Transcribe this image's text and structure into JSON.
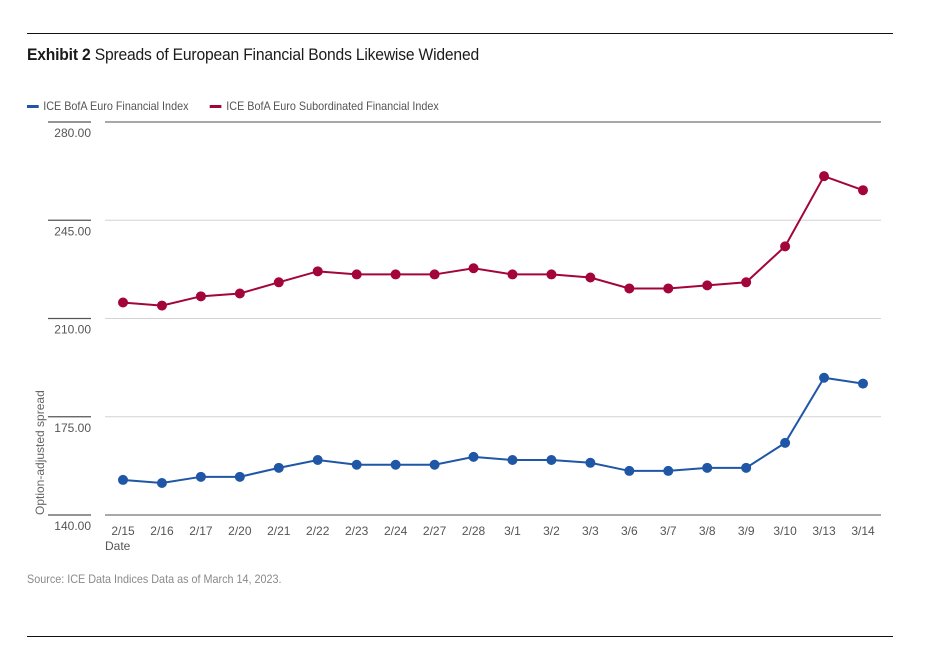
{
  "header": {
    "exhibit": "Exhibit 2",
    "title": "Spreads of European Financial Bonds Likewise Widened"
  },
  "footer": {
    "source": "Source: ICE Data Indices  Data as of March 14, 2023."
  },
  "chart_data": {
    "type": "line",
    "title": "Exhibit 2 Spreads of European Financial Bonds Likewise Widened",
    "xlabel": "Date",
    "ylabel": "Option-adjusted spread",
    "ylim": [
      140,
      280
    ],
    "yticks": [
      140,
      175,
      210,
      245,
      280
    ],
    "ytick_labels": [
      "140.00",
      "175.00",
      "210.00",
      "245.00",
      "280.00"
    ],
    "grid": true,
    "legend_position": "top-left",
    "categories": [
      "2/15",
      "2/16",
      "2/17",
      "2/20",
      "2/21",
      "2/22",
      "2/23",
      "2/24",
      "2/27",
      "2/28",
      "3/1",
      "3/2",
      "3/3",
      "3/6",
      "3/7",
      "3/8",
      "3/9",
      "3/10",
      "3/13",
      "3/14"
    ],
    "series": [
      {
        "name": "ICE BofA Euro Financial Index",
        "color": "#1f56a6",
        "values": [
          152.5,
          151.4,
          153.6,
          153.6,
          156.8,
          159.6,
          157.9,
          157.9,
          157.9,
          160.7,
          159.6,
          159.6,
          158.6,
          155.7,
          155.7,
          156.8,
          156.8,
          165.7,
          188.9,
          186.8
        ]
      },
      {
        "name": "ICE BofA Euro Subordinated Financial Index",
        "color": "#a3053a",
        "values": [
          215.7,
          214.6,
          217.9,
          218.9,
          222.9,
          226.8,
          225.7,
          225.7,
          225.7,
          227.9,
          225.7,
          225.7,
          224.6,
          220.7,
          220.7,
          221.8,
          222.9,
          235.7,
          260.7,
          255.7
        ]
      }
    ]
  }
}
